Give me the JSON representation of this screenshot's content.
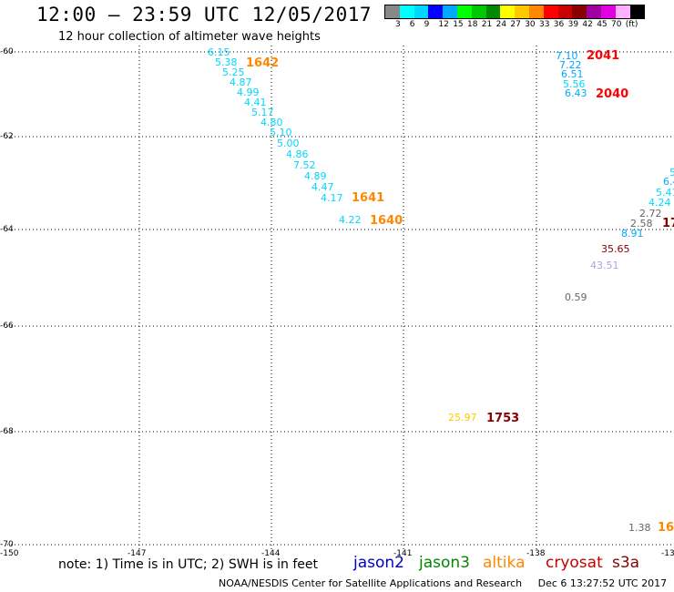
{
  "header": {
    "title": "12:00 – 23:59 UTC 12/05/2017",
    "subtitle": "12 hour collection of altimeter wave heights"
  },
  "colorbar": {
    "colors": [
      "#888888",
      "#00ffff",
      "#00d7ff",
      "#0000ff",
      "#00a8ff",
      "#00ff00",
      "#00c800",
      "#008800",
      "#ffff00",
      "#ffc800",
      "#ff8800",
      "#ff0000",
      "#c80000",
      "#880000",
      "#a000a0",
      "#e000e0",
      "#ffb0ff",
      "#000000"
    ],
    "labels": [
      "3",
      "6",
      "9",
      "12",
      "15",
      "18",
      "21",
      "24",
      "27",
      "30",
      "33",
      "36",
      "39",
      "42",
      "45",
      "70",
      "(ft)"
    ]
  },
  "map": {
    "lat_labels": [
      "-60",
      "-62",
      "-64",
      "-66",
      "-68",
      "-70"
    ],
    "lon_labels": [
      "-150",
      "-147",
      "-144",
      "-141",
      "-138",
      "-13"
    ]
  },
  "observations": [
    {
      "text": "6.15",
      "color": "#00d7ff"
    },
    {
      "text": "5.38",
      "color": "#00d7ff"
    },
    {
      "text": "5.25",
      "color": "#00d7ff"
    },
    {
      "text": "4.87",
      "color": "#00d7ff"
    },
    {
      "text": "4.99",
      "color": "#00d7ff"
    },
    {
      "text": "4.41",
      "color": "#00d7ff"
    },
    {
      "text": "5.17",
      "color": "#00d7ff"
    },
    {
      "text": "4.80",
      "color": "#00d7ff"
    },
    {
      "text": "5.10",
      "color": "#00d7ff"
    },
    {
      "text": "5.00",
      "color": "#00d7ff"
    },
    {
      "text": "4.86",
      "color": "#00d7ff"
    },
    {
      "text": "7.52",
      "color": "#00d7ff"
    },
    {
      "text": "4.89",
      "color": "#00d7ff"
    },
    {
      "text": "4.47",
      "color": "#00d7ff"
    },
    {
      "text": "4.17",
      "color": "#00d7ff"
    },
    {
      "text": "4.22",
      "color": "#00d7ff"
    },
    {
      "text": "7.10",
      "color": "#00a8ff"
    },
    {
      "text": "7.22",
      "color": "#00a8ff"
    },
    {
      "text": "6.51",
      "color": "#00a8ff"
    },
    {
      "text": "5.56",
      "color": "#00d7ff"
    },
    {
      "text": "6.43",
      "color": "#00a8ff"
    },
    {
      "text": "5",
      "color": "#00d7ff"
    },
    {
      "text": "6.4",
      "color": "#00a8ff"
    },
    {
      "text": "5.41",
      "color": "#00d7ff"
    },
    {
      "text": "4.24",
      "color": "#00d7ff"
    },
    {
      "text": "2.72",
      "color": "#666666"
    },
    {
      "text": "2.58",
      "color": "#666666"
    },
    {
      "text": "8.91",
      "color": "#00a8ff"
    },
    {
      "text": "35.65",
      "color": "#880000"
    },
    {
      "text": "43.51",
      "color": "#b0a0e0"
    },
    {
      "text": "0.59",
      "color": "#666666"
    },
    {
      "text": "25.97",
      "color": "#ffc800"
    },
    {
      "text": "1.38",
      "color": "#666666"
    }
  ],
  "passes": [
    {
      "text": "1642",
      "color": "#ff8800"
    },
    {
      "text": "1641",
      "color": "#ff8800"
    },
    {
      "text": "1640",
      "color": "#ff8800"
    },
    {
      "text": "2041",
      "color": "#ff0000"
    },
    {
      "text": "2040",
      "color": "#ff0000"
    },
    {
      "text": "17",
      "color": "#880000"
    },
    {
      "text": "1753",
      "color": "#880000"
    },
    {
      "text": "16",
      "color": "#ff8800"
    }
  ],
  "footer": {
    "note": "note: 1) Time is in UTC; 2) SWH is in feet",
    "satellites": [
      {
        "name": "jason2",
        "color": "#0000c8"
      },
      {
        "name": "jason3",
        "color": "#008800"
      },
      {
        "name": "altika",
        "color": "#ff8800"
      },
      {
        "name": "cryosat",
        "color": "#c80000"
      },
      {
        "name": "s3a",
        "color": "#880000"
      }
    ],
    "credit": "NOAA/NESDIS Center for Satellite Applications and Research",
    "timestamp": "Dec  6 13:27:52 UTC 2017"
  }
}
